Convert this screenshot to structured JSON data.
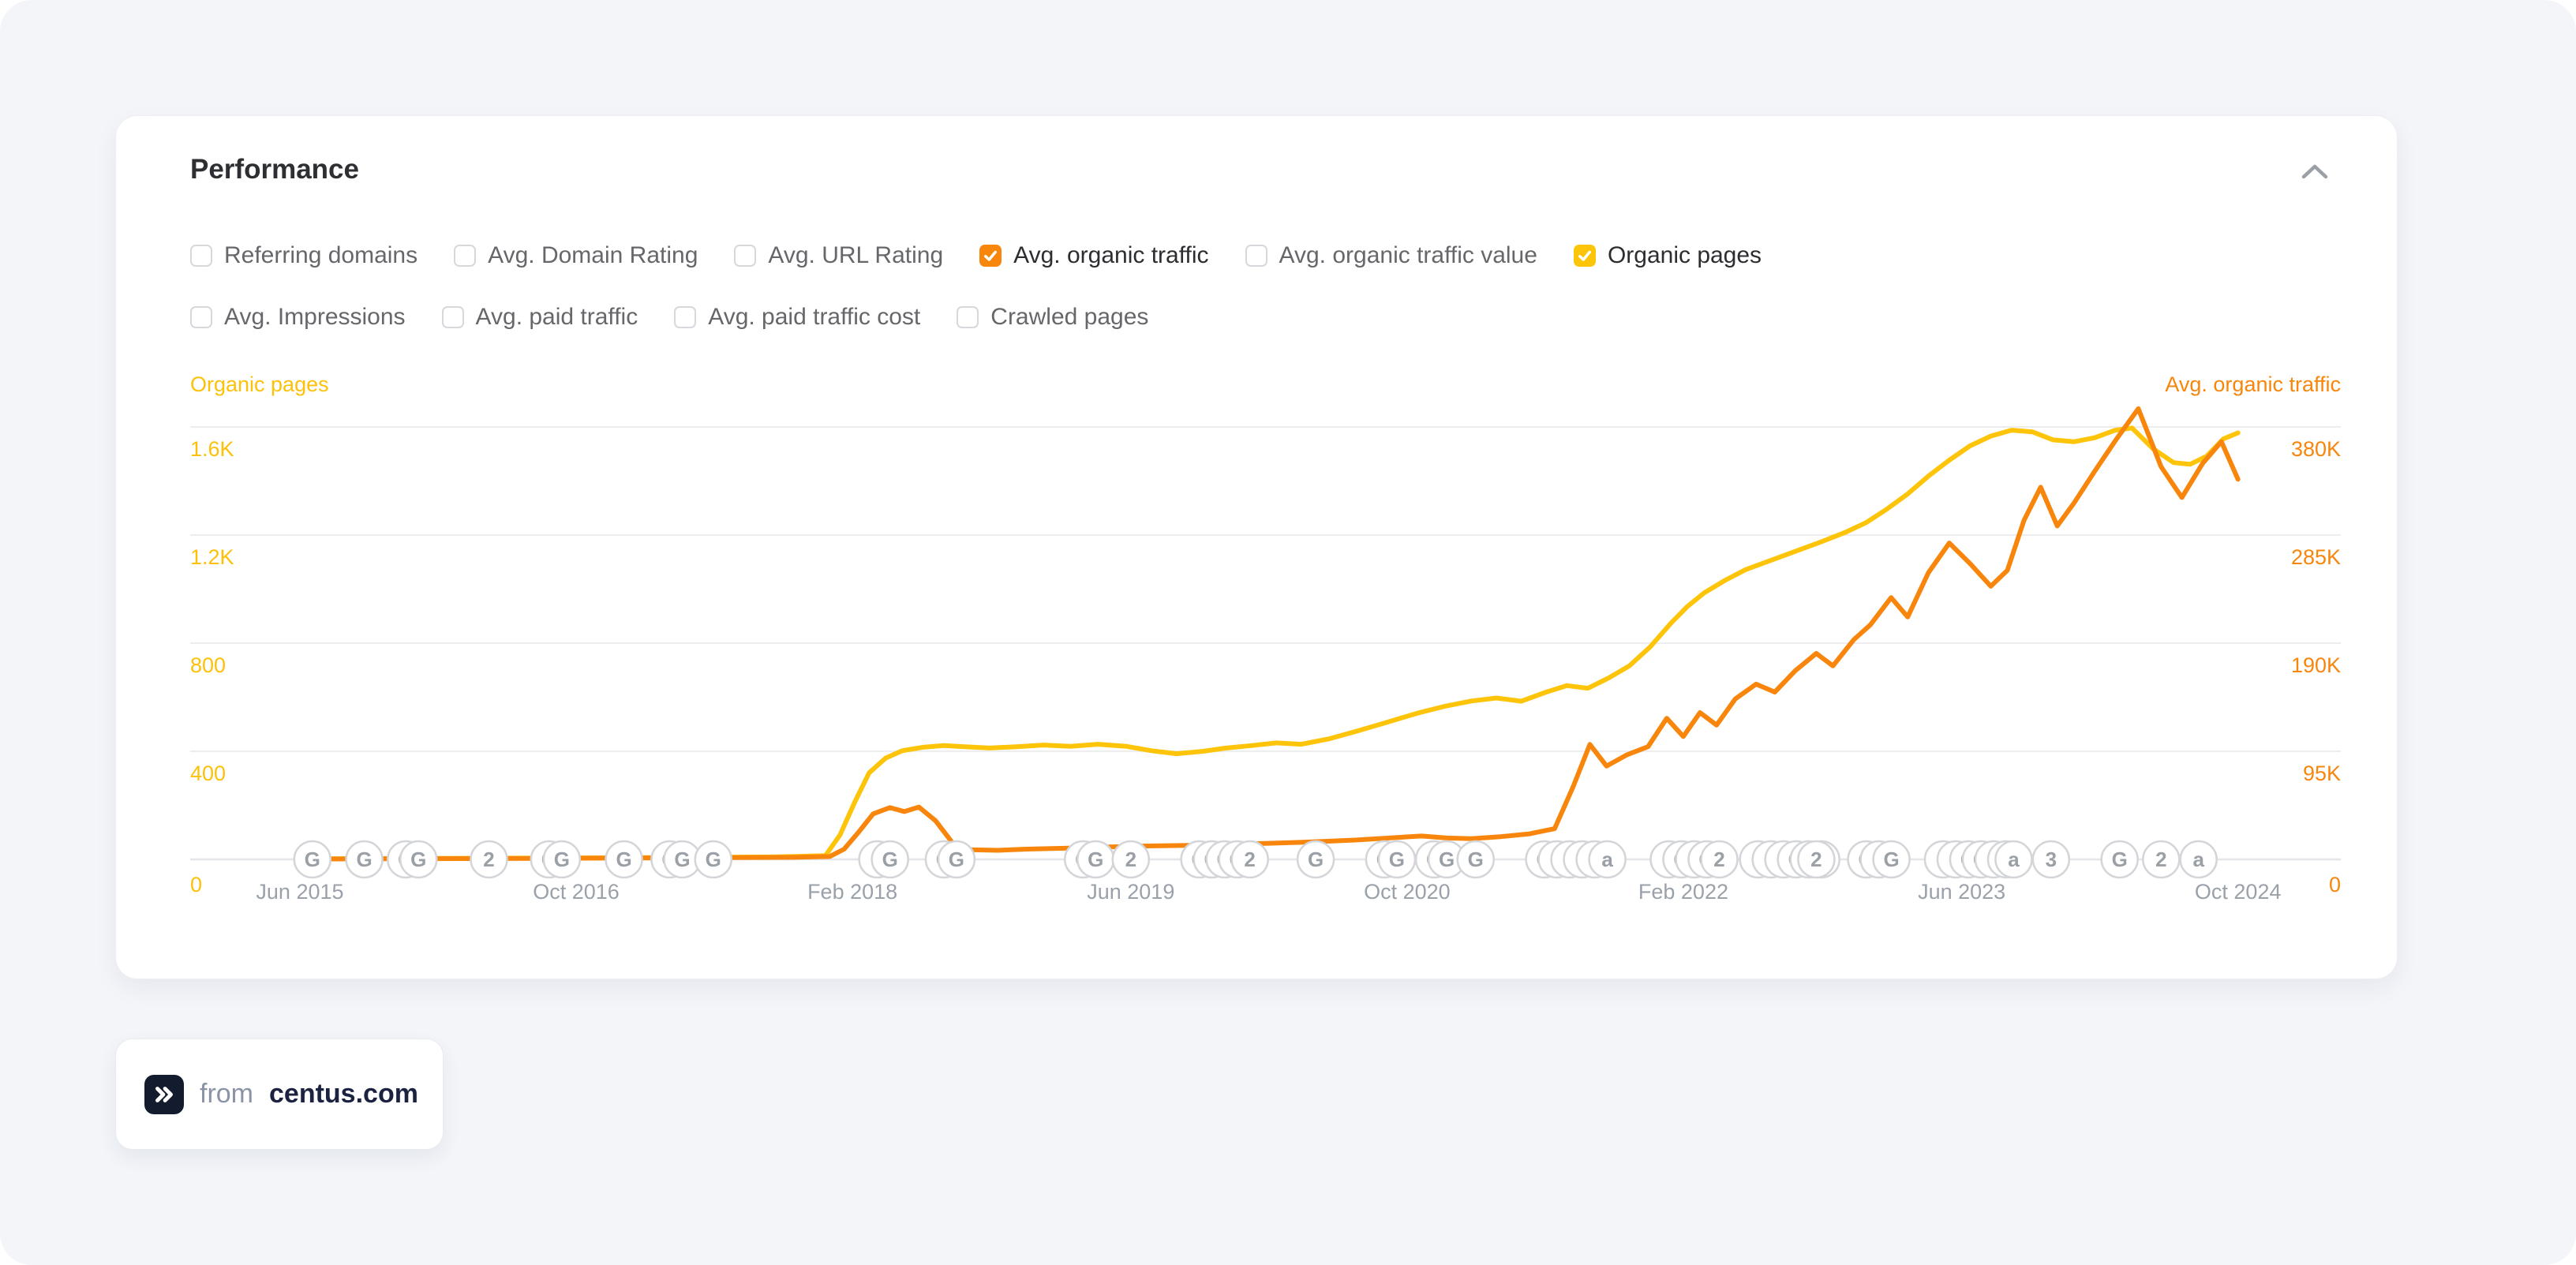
{
  "header": {
    "title": "Performance"
  },
  "collapse_icon": "chevron-up",
  "filters": {
    "rows": [
      {
        "items": [
          {
            "label": "Referring domains",
            "checked": false
          },
          {
            "label": "Avg. Domain Rating",
            "checked": false
          },
          {
            "label": "Avg. URL Rating",
            "checked": false
          },
          {
            "label": "Avg. organic traffic",
            "checked": true,
            "check_color": "#f8860c"
          },
          {
            "label": "Avg. organic traffic value",
            "checked": false
          },
          {
            "label": "Organic pages",
            "checked": true,
            "check_color": "#fcc50a"
          }
        ]
      },
      {
        "items": [
          {
            "label": "Avg. Impressions",
            "checked": false
          },
          {
            "label": "Avg. paid traffic",
            "checked": false
          },
          {
            "label": "Avg. paid traffic cost",
            "checked": false
          },
          {
            "label": "Crawled pages",
            "checked": false
          }
        ]
      }
    ]
  },
  "chart_data": {
    "type": "line",
    "grid": true,
    "gridline_color": "#ededef",
    "baseline_color": "#e4e5e8",
    "x_axis": {
      "range": [
        2014.892,
        2025.245
      ],
      "labels": [
        {
          "text": "Jun 2015",
          "year": 2015.42
        },
        {
          "text": "Oct 2016",
          "year": 2016.75
        },
        {
          "text": "Feb 2018",
          "year": 2018.08
        },
        {
          "text": "Jun 2019",
          "year": 2019.42
        },
        {
          "text": "Oct 2020",
          "year": 2020.75
        },
        {
          "text": "Feb 2022",
          "year": 2022.08
        },
        {
          "text": "Jun 2023",
          "year": 2023.42
        },
        {
          "text": "Oct 2024",
          "year": 2024.75
        }
      ]
    },
    "left_axis": {
      "title": "Organic pages",
      "color": "#fdc10a",
      "grid_unit": 400,
      "ticks": [
        {
          "label": "1.6K",
          "value": 1600
        },
        {
          "label": "1.2K",
          "value": 1200
        },
        {
          "label": "800",
          "value": 800
        },
        {
          "label": "400",
          "value": 400
        },
        {
          "label": "0",
          "value": 0
        }
      ]
    },
    "right_axis": {
      "title": "Avg. organic traffic",
      "color": "#f8860c",
      "grid_unit": 95000,
      "ticks": [
        {
          "label": "380K",
          "value": 380000
        },
        {
          "label": "285K",
          "value": 285000
        },
        {
          "label": "190K",
          "value": 190000
        },
        {
          "label": "95K",
          "value": 95000
        },
        {
          "label": "0",
          "value": 0
        }
      ]
    },
    "series": [
      {
        "name": "Organic pages",
        "axis": "left",
        "color": "#fdc40a",
        "points": [
          [
            2015.42,
            2
          ],
          [
            2015.8,
            3
          ],
          [
            2016.2,
            4
          ],
          [
            2016.7,
            5
          ],
          [
            2017.2,
            7
          ],
          [
            2017.7,
            9
          ],
          [
            2017.95,
            14
          ],
          [
            2018.02,
            90
          ],
          [
            2018.09,
            210
          ],
          [
            2018.16,
            320
          ],
          [
            2018.24,
            375
          ],
          [
            2018.32,
            402
          ],
          [
            2018.42,
            415
          ],
          [
            2018.52,
            421
          ],
          [
            2018.62,
            417
          ],
          [
            2018.74,
            412
          ],
          [
            2018.87,
            417
          ],
          [
            2019.0,
            423
          ],
          [
            2019.13,
            418
          ],
          [
            2019.26,
            426
          ],
          [
            2019.4,
            418
          ],
          [
            2019.52,
            402
          ],
          [
            2019.64,
            391
          ],
          [
            2019.76,
            399
          ],
          [
            2019.88,
            412
          ],
          [
            2020.0,
            421
          ],
          [
            2020.12,
            431
          ],
          [
            2020.24,
            426
          ],
          [
            2020.38,
            447
          ],
          [
            2020.52,
            477
          ],
          [
            2020.66,
            509
          ],
          [
            2020.8,
            541
          ],
          [
            2020.93,
            566
          ],
          [
            2021.06,
            586
          ],
          [
            2021.18,
            597
          ],
          [
            2021.3,
            585
          ],
          [
            2021.42,
            619
          ],
          [
            2021.52,
            643
          ],
          [
            2021.62,
            633
          ],
          [
            2021.72,
            671
          ],
          [
            2021.82,
            716
          ],
          [
            2021.92,
            786
          ],
          [
            2022.02,
            874
          ],
          [
            2022.1,
            936
          ],
          [
            2022.18,
            986
          ],
          [
            2022.28,
            1032
          ],
          [
            2022.38,
            1072
          ],
          [
            2022.5,
            1106
          ],
          [
            2022.62,
            1140
          ],
          [
            2022.74,
            1174
          ],
          [
            2022.86,
            1210
          ],
          [
            2022.96,
            1246
          ],
          [
            2023.06,
            1296
          ],
          [
            2023.16,
            1352
          ],
          [
            2023.26,
            1418
          ],
          [
            2023.36,
            1477
          ],
          [
            2023.46,
            1530
          ],
          [
            2023.56,
            1566
          ],
          [
            2023.66,
            1588
          ],
          [
            2023.76,
            1582
          ],
          [
            2023.86,
            1552
          ],
          [
            2023.96,
            1545
          ],
          [
            2024.06,
            1560
          ],
          [
            2024.16,
            1588
          ],
          [
            2024.24,
            1596
          ],
          [
            2024.34,
            1520
          ],
          [
            2024.44,
            1468
          ],
          [
            2024.52,
            1462
          ],
          [
            2024.6,
            1492
          ],
          [
            2024.68,
            1556
          ],
          [
            2024.75,
            1578
          ]
        ]
      },
      {
        "name": "Avg. organic traffic",
        "axis": "right",
        "color": "#f8860c",
        "points": [
          [
            2015.42,
            300
          ],
          [
            2016.0,
            600
          ],
          [
            2016.6,
            900
          ],
          [
            2017.2,
            1300
          ],
          [
            2017.8,
            1800
          ],
          [
            2017.97,
            2500
          ],
          [
            2018.04,
            9000
          ],
          [
            2018.11,
            24000
          ],
          [
            2018.18,
            40000
          ],
          [
            2018.26,
            45500
          ],
          [
            2018.33,
            42000
          ],
          [
            2018.4,
            46000
          ],
          [
            2018.48,
            34000
          ],
          [
            2018.56,
            15000
          ],
          [
            2018.64,
            8500
          ],
          [
            2018.78,
            8000
          ],
          [
            2018.92,
            9000
          ],
          [
            2019.1,
            9800
          ],
          [
            2019.3,
            10800
          ],
          [
            2019.5,
            11800
          ],
          [
            2019.7,
            12300
          ],
          [
            2019.9,
            13200
          ],
          [
            2020.1,
            14200
          ],
          [
            2020.3,
            15400
          ],
          [
            2020.5,
            17000
          ],
          [
            2020.68,
            19000
          ],
          [
            2020.82,
            20500
          ],
          [
            2020.94,
            18800
          ],
          [
            2021.06,
            18200
          ],
          [
            2021.2,
            20000
          ],
          [
            2021.34,
            22500
          ],
          [
            2021.46,
            27000
          ],
          [
            2021.55,
            64000
          ],
          [
            2021.63,
            101000
          ],
          [
            2021.71,
            82000
          ],
          [
            2021.81,
            92000
          ],
          [
            2021.91,
            99000
          ],
          [
            2022.0,
            124000
          ],
          [
            2022.08,
            108000
          ],
          [
            2022.16,
            129000
          ],
          [
            2022.24,
            118000
          ],
          [
            2022.33,
            141000
          ],
          [
            2022.43,
            154000
          ],
          [
            2022.52,
            147000
          ],
          [
            2022.62,
            166000
          ],
          [
            2022.72,
            181000
          ],
          [
            2022.8,
            170000
          ],
          [
            2022.9,
            193000
          ],
          [
            2022.98,
            206000
          ],
          [
            2023.08,
            230000
          ],
          [
            2023.16,
            213000
          ],
          [
            2023.26,
            252000
          ],
          [
            2023.36,
            278000
          ],
          [
            2023.46,
            260000
          ],
          [
            2023.56,
            240000
          ],
          [
            2023.64,
            254000
          ],
          [
            2023.72,
            298000
          ],
          [
            2023.8,
            327000
          ],
          [
            2023.88,
            293000
          ],
          [
            2023.96,
            313000
          ],
          [
            2024.06,
            341000
          ],
          [
            2024.16,
            368000
          ],
          [
            2024.27,
            396000
          ],
          [
            2024.38,
            345000
          ],
          [
            2024.48,
            318000
          ],
          [
            2024.58,
            348000
          ],
          [
            2024.67,
            367000
          ],
          [
            2024.75,
            334000
          ]
        ]
      }
    ],
    "google_updates": {
      "circle_border": "#d3d5d9",
      "letter_color": "#9aa0a6",
      "markers": [
        {
          "year": 2015.48,
          "letters": [
            "G"
          ]
        },
        {
          "year": 2015.73,
          "letters": [
            "G"
          ]
        },
        {
          "year": 2015.93,
          "letters": [
            "G",
            "G"
          ]
        },
        {
          "year": 2016.33,
          "letters": [
            "2"
          ]
        },
        {
          "year": 2016.62,
          "letters": [
            "G",
            "G"
          ]
        },
        {
          "year": 2016.98,
          "letters": [
            "G"
          ]
        },
        {
          "year": 2017.2,
          "letters": [
            "G",
            "G"
          ]
        },
        {
          "year": 2017.41,
          "letters": [
            "G"
          ]
        },
        {
          "year": 2018.2,
          "letters": [
            "2",
            "G"
          ]
        },
        {
          "year": 2018.52,
          "letters": [
            "G",
            "G"
          ]
        },
        {
          "year": 2019.19,
          "letters": [
            "G",
            "G"
          ]
        },
        {
          "year": 2019.42,
          "letters": [
            "2"
          ]
        },
        {
          "year": 2019.75,
          "letters": [
            "G",
            "G",
            "G",
            "G",
            "2"
          ]
        },
        {
          "year": 2020.31,
          "letters": [
            "G"
          ]
        },
        {
          "year": 2020.64,
          "letters": [
            "G",
            "G"
          ]
        },
        {
          "year": 2020.88,
          "letters": [
            "G",
            "G"
          ]
        },
        {
          "year": 2021.08,
          "letters": [
            "G"
          ]
        },
        {
          "year": 2021.41,
          "letters": [
            "G",
            "a",
            "5",
            "2",
            "2",
            "a"
          ]
        },
        {
          "year": 2022.01,
          "letters": [
            "3",
            "G",
            "a",
            "G",
            "2"
          ]
        },
        {
          "year": 2022.44,
          "letters": [
            "2",
            "a",
            "2",
            "G",
            "2",
            "2"
          ]
        },
        {
          "year": 2022.72,
          "letters": [
            "2"
          ]
        },
        {
          "year": 2022.96,
          "letters": [
            "G",
            "2",
            "G"
          ]
        },
        {
          "year": 2023.33,
          "letters": [
            "a",
            "a",
            "G",
            "G",
            "2",
            "2"
          ]
        },
        {
          "year": 2023.67,
          "letters": [
            "a"
          ]
        },
        {
          "year": 2023.85,
          "letters": [
            "3"
          ]
        },
        {
          "year": 2024.18,
          "letters": [
            "G"
          ]
        },
        {
          "year": 2024.38,
          "letters": [
            "2"
          ]
        },
        {
          "year": 2024.56,
          "letters": [
            "a"
          ]
        }
      ]
    }
  },
  "source_badge": {
    "prefix": "from",
    "domain": "centus.com",
    "icon": "double-chevron-right"
  }
}
